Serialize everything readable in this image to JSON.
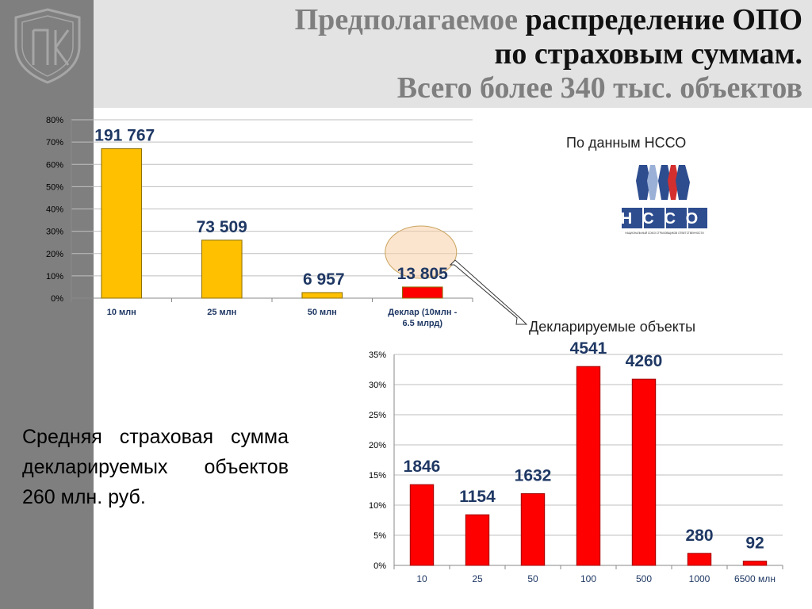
{
  "title": {
    "line1_gray": "Предполагаемое",
    "line1_black": "распределение ОПО",
    "line2": "по страховым суммам.",
    "line3": "Всего более 340 тыс. объектов"
  },
  "nsso": {
    "caption": "По данным НССО",
    "logo_text": "НССО",
    "logo_subtext": "НАЦИОНАЛЬНЫЙ СОЮЗ СТРАХОВЩИКОВ ОТВЕТСТВЕННОСТИ"
  },
  "decl_caption": "Декларируемые объекты",
  "note": "Средняя страховая сумма декларируемых объектов 260 млн. руб.",
  "colors": {
    "yellow": "#ffc000",
    "red": "#ff0000",
    "label": "#1f3864",
    "sidebar": "#7f7f7f",
    "band": "#e3e3e3"
  },
  "chart_data": [
    {
      "type": "bar",
      "categories": [
        "10 млн",
        "25 млн",
        "50 млн",
        "Деклар (10млн - 6.5 млрд)"
      ],
      "category_lines": [
        [
          "10 млн"
        ],
        [
          "25 млн"
        ],
        [
          "50 млн"
        ],
        [
          "Деклар (10млн -",
          "6.5 млрд)"
        ]
      ],
      "values": [
        67,
        26,
        2.5,
        5
      ],
      "data_labels": [
        "191 767",
        "73 509",
        "6 957",
        "13 805"
      ],
      "bar_colors": [
        "#ffc000",
        "#ffc000",
        "#ffc000",
        "#ff0000"
      ],
      "ylim": [
        0,
        80
      ],
      "yticks": [
        "0%",
        "10%",
        "20%",
        "30%",
        "40%",
        "50%",
        "60%",
        "70%",
        "80%"
      ],
      "grid": true
    },
    {
      "type": "bar",
      "categories": [
        "10",
        "25",
        "50",
        "100",
        "500",
        "1000",
        "6500 млн"
      ],
      "values": [
        13.4,
        8.4,
        11.9,
        33,
        30.9,
        2,
        0.7
      ],
      "data_labels": [
        "1846",
        "1154",
        "1632",
        "4541",
        "4260",
        "280",
        "92"
      ],
      "ylim": [
        0,
        35
      ],
      "yticks": [
        "0%",
        "5%",
        "10%",
        "15%",
        "20%",
        "25%",
        "30%",
        "35%"
      ],
      "grid": true
    }
  ]
}
